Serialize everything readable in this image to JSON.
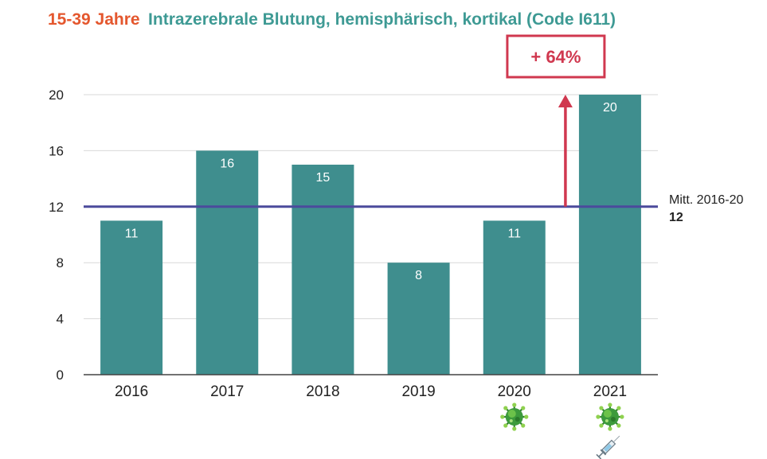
{
  "title": {
    "age_group": "15-39 Jahre",
    "text": "Intrazerebrale Blutung, hemisphärisch, kortikal (Code I611)"
  },
  "colors": {
    "bar": "#3f8e8e",
    "average_line": "#4b4a9c",
    "accent": "#d0384f",
    "title_age": "#e4572e",
    "title_main": "#3e9a94"
  },
  "chart_data": {
    "type": "bar",
    "categories": [
      "2016",
      "2017",
      "2018",
      "2019",
      "2020",
      "2021"
    ],
    "values": [
      11,
      16,
      15,
      8,
      11,
      20
    ],
    "ylim": [
      0,
      20
    ],
    "yticks": [
      0,
      4,
      8,
      12,
      16,
      20
    ],
    "average": {
      "label": "Mitt. 2016-20",
      "value": 12
    },
    "annotation": {
      "text": "+ 64%",
      "target_category": "2021"
    },
    "category_icons": {
      "2020": [
        "virus-icon"
      ],
      "2021": [
        "virus-icon",
        "syringe-icon"
      ]
    }
  }
}
